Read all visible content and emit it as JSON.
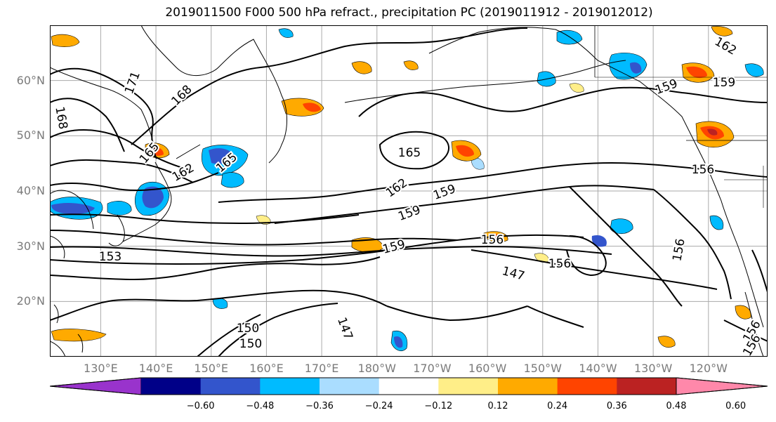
{
  "title": "2019011500 F000 500 hPa refract., precipitation PC (2019011912 - 2019012012)",
  "map": {
    "lat_labels": [
      {
        "label": "60°N",
        "lat": 60
      },
      {
        "label": "50°N",
        "lat": 50
      },
      {
        "label": "40°N",
        "lat": 40
      },
      {
        "label": "30°N",
        "lat": 30
      },
      {
        "label": "20°N",
        "lat": 20
      }
    ],
    "lon_labels": [
      {
        "label": "130°E",
        "lon": 130
      },
      {
        "label": "140°E",
        "lon": 140
      },
      {
        "label": "150°E",
        "lon": 150
      },
      {
        "label": "160°E",
        "lon": 160
      },
      {
        "label": "170°E",
        "lon": 170
      },
      {
        "label": "180°W",
        "lon": 180
      },
      {
        "label": "170°W",
        "lon": 190
      },
      {
        "label": "160°W",
        "lon": 200
      },
      {
        "label": "150°W",
        "lon": 210
      },
      {
        "label": "140°W",
        "lon": 220
      },
      {
        "label": "130°W",
        "lon": 230
      },
      {
        "label": "120°W",
        "lon": 240
      }
    ],
    "lon_range": [
      120.8,
      250.7
    ],
    "lat_range": [
      10,
      70
    ],
    "grid": true,
    "contour_labels": [
      "171",
      "168",
      "168",
      "165",
      "165",
      "162",
      "162",
      "159",
      "159",
      "159",
      "156",
      "156",
      "156",
      "153",
      "150",
      "150",
      "147",
      "147",
      "159",
      "165",
      "162",
      "159",
      "156",
      "156",
      "156"
    ]
  },
  "colorbar": {
    "colors": [
      "#9933cc",
      "#000088",
      "#3355cc",
      "#00bbff",
      "#aaddff",
      "#ffffff",
      "#ffee88",
      "#ffaa00",
      "#ff4400",
      "#bb2222",
      "#ff88aa"
    ],
    "ticks": [
      "−0.60",
      "−0.48",
      "−0.36",
      "−0.24",
      "−0.12",
      "0.12",
      "0.24",
      "0.36",
      "0.48",
      "0.60"
    ]
  }
}
